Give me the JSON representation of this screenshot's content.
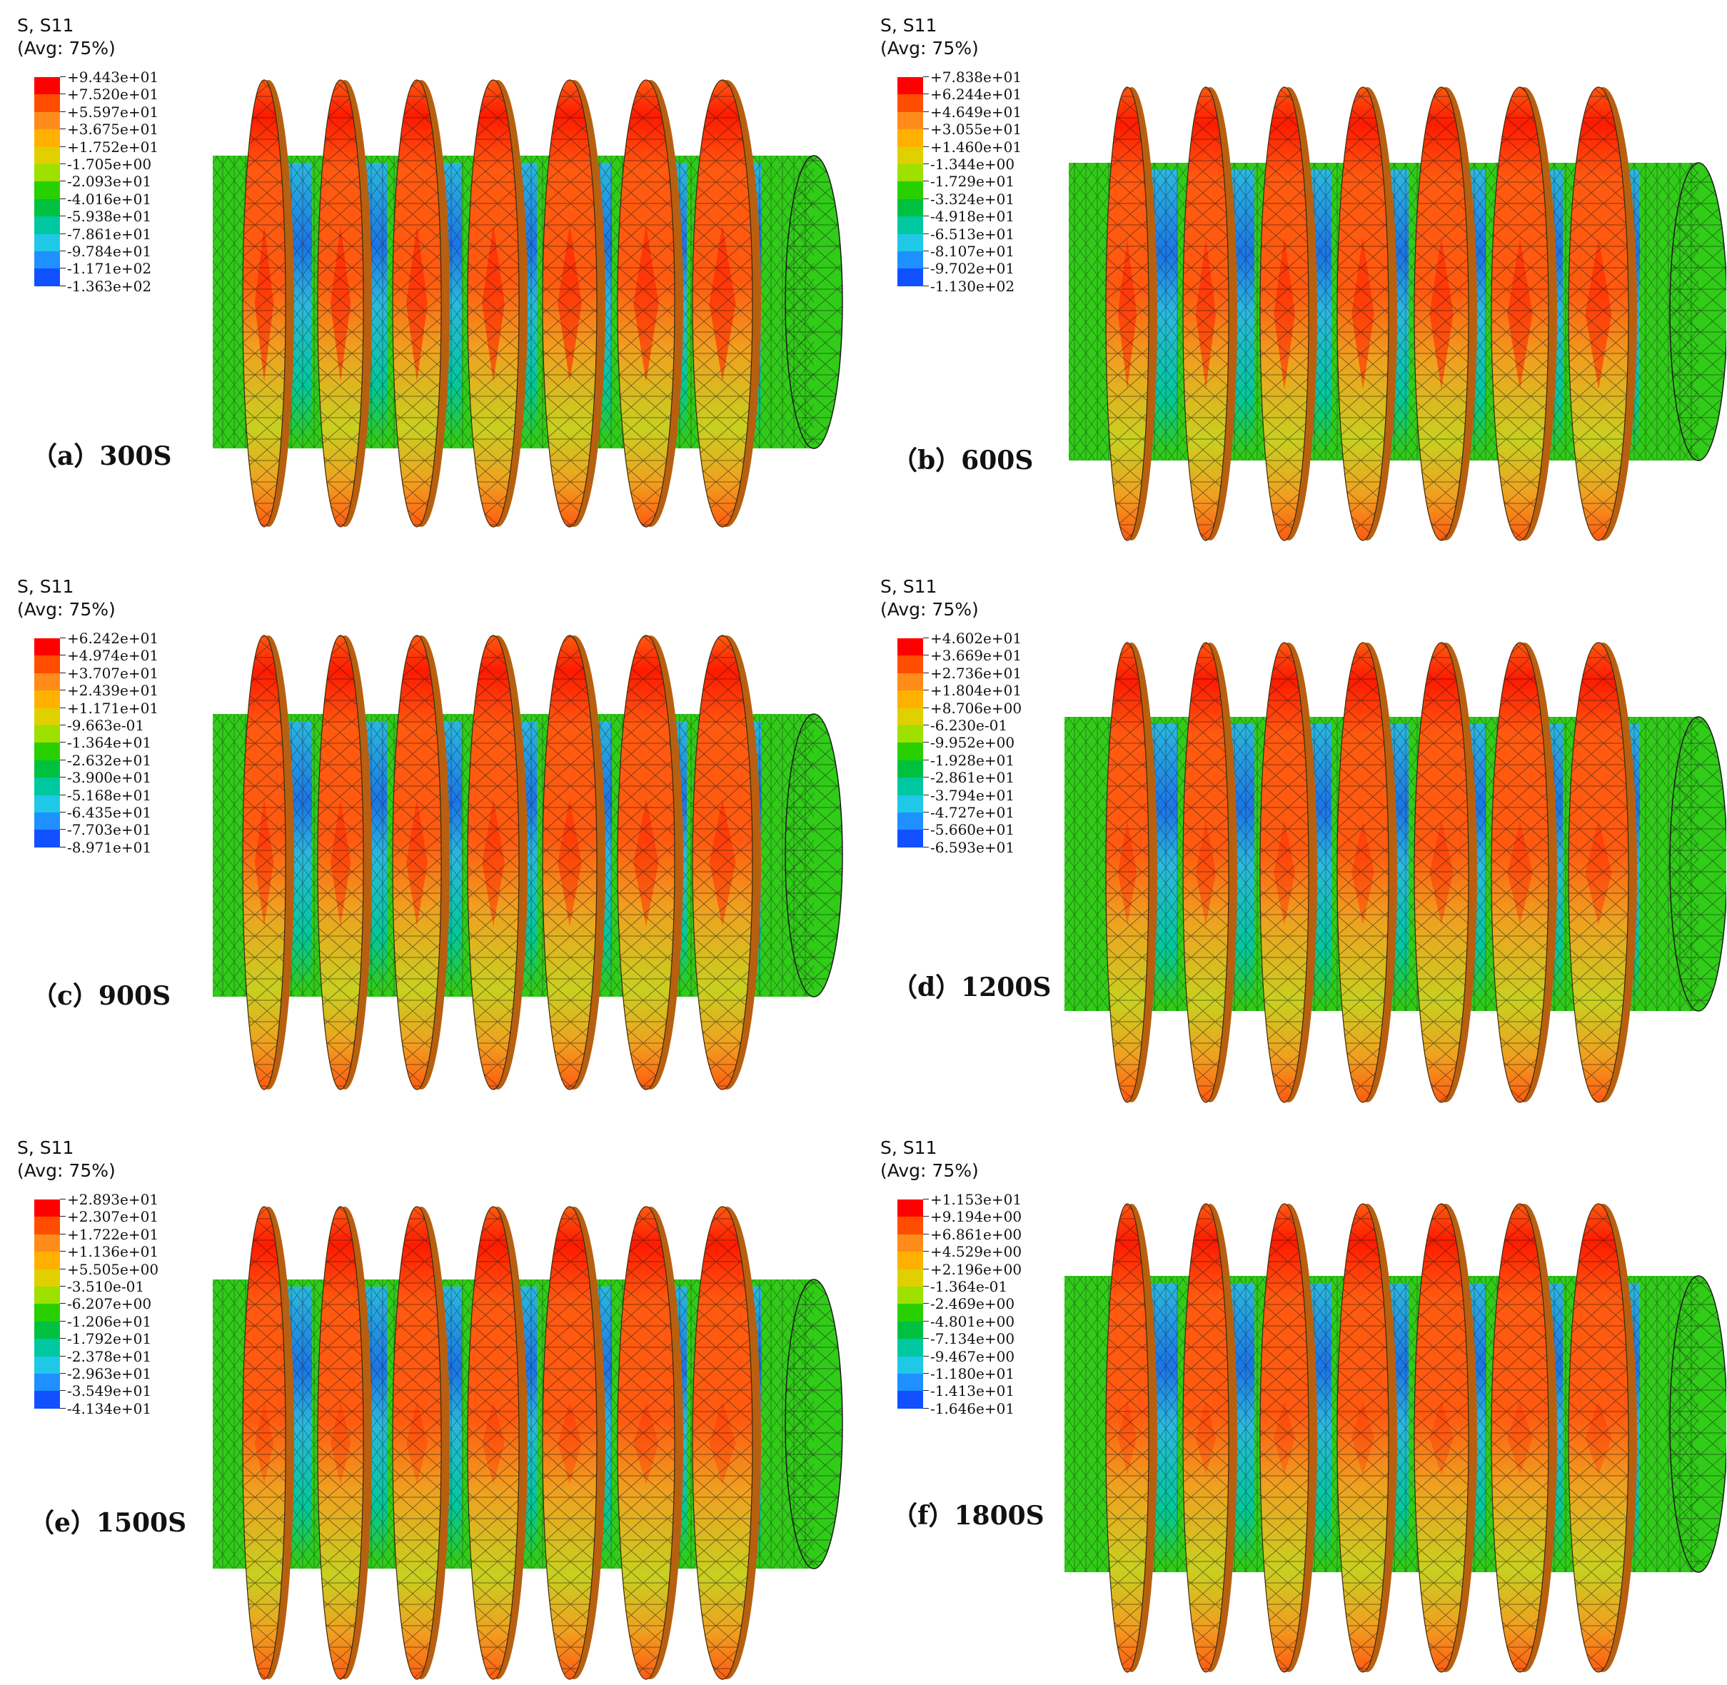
{
  "colors": {
    "scale": [
      "#ff0000",
      "#ff4d00",
      "#ff8c1a",
      "#ffb000",
      "#e0d000",
      "#9ee000",
      "#28d000",
      "#00c040",
      "#00c8a0",
      "#20c8e8",
      "#1e90ff",
      "#1050ff",
      "#0000ff"
    ],
    "ring_base": "#f0a020",
    "ring_high": "#ff5a10",
    "ring_peak": "#ff1a00",
    "ring_low": "#c8d020",
    "valley": "#2ab8e8",
    "valley_low": "#1a70f0",
    "cylinder": "#30cc18",
    "mesh": "#1a1a1a"
  },
  "panels": [
    {
      "legend_title": "S, S11",
      "legend_subtitle": "(Avg: 75%)",
      "legend_values": [
        "+9.443e+01",
        "+7.520e+01",
        "+5.597e+01",
        "+3.675e+01",
        "+1.752e+01",
        "-1.705e+00",
        "-2.093e+01",
        "-4.016e+01",
        "-5.938e+01",
        "-7.861e+01",
        "-9.784e+01",
        "-1.171e+02",
        "-1.363e+02"
      ],
      "caption": "（a）300S"
    },
    {
      "legend_title": "S, S11",
      "legend_subtitle": "(Avg: 75%)",
      "legend_values": [
        "+7.838e+01",
        "+6.244e+01",
        "+4.649e+01",
        "+3.055e+01",
        "+1.460e+01",
        "-1.344e+00",
        "-1.729e+01",
        "-3.324e+01",
        "-4.918e+01",
        "-6.513e+01",
        "-8.107e+01",
        "-9.702e+01",
        "-1.130e+02"
      ],
      "caption": "（b）600S"
    },
    {
      "legend_title": "S, S11",
      "legend_subtitle": "(Avg: 75%)",
      "legend_values": [
        "+6.242e+01",
        "+4.974e+01",
        "+3.707e+01",
        "+2.439e+01",
        "+1.171e+01",
        "-9.663e-01",
        "-1.364e+01",
        "-2.632e+01",
        "-3.900e+01",
        "-5.168e+01",
        "-6.435e+01",
        "-7.703e+01",
        "-8.971e+01"
      ],
      "caption": "（c）900S"
    },
    {
      "legend_title": "S, S11",
      "legend_subtitle": "(Avg: 75%)",
      "legend_values": [
        "+4.602e+01",
        "+3.669e+01",
        "+2.736e+01",
        "+1.804e+01",
        "+8.706e+00",
        "-6.230e-01",
        "-9.952e+00",
        "-1.928e+01",
        "-2.861e+01",
        "-3.794e+01",
        "-4.727e+01",
        "-5.660e+01",
        "-6.593e+01"
      ],
      "caption": "（d）1200S"
    },
    {
      "legend_title": "S, S11",
      "legend_subtitle": "(Avg: 75%)",
      "legend_values": [
        "+2.893e+01",
        "+2.307e+01",
        "+1.722e+01",
        "+1.136e+01",
        "+5.505e+00",
        "-3.510e-01",
        "-6.207e+00",
        "-1.206e+01",
        "-1.792e+01",
        "-2.378e+01",
        "-2.963e+01",
        "-3.549e+01",
        "-4.134e+01"
      ],
      "caption": "（e）1500S"
    },
    {
      "legend_title": "S, S11",
      "legend_subtitle": "(Avg: 75%)",
      "legend_values": [
        "+1.153e+01",
        "+9.194e+00",
        "+6.861e+00",
        "+4.529e+00",
        "+2.196e+00",
        "-1.364e-01",
        "-2.469e+00",
        "-4.801e+00",
        "-7.134e+00",
        "-9.467e+00",
        "-1.180e+01",
        "-1.413e+01",
        "-1.646e+01"
      ],
      "caption": "（f）1800S"
    }
  ]
}
